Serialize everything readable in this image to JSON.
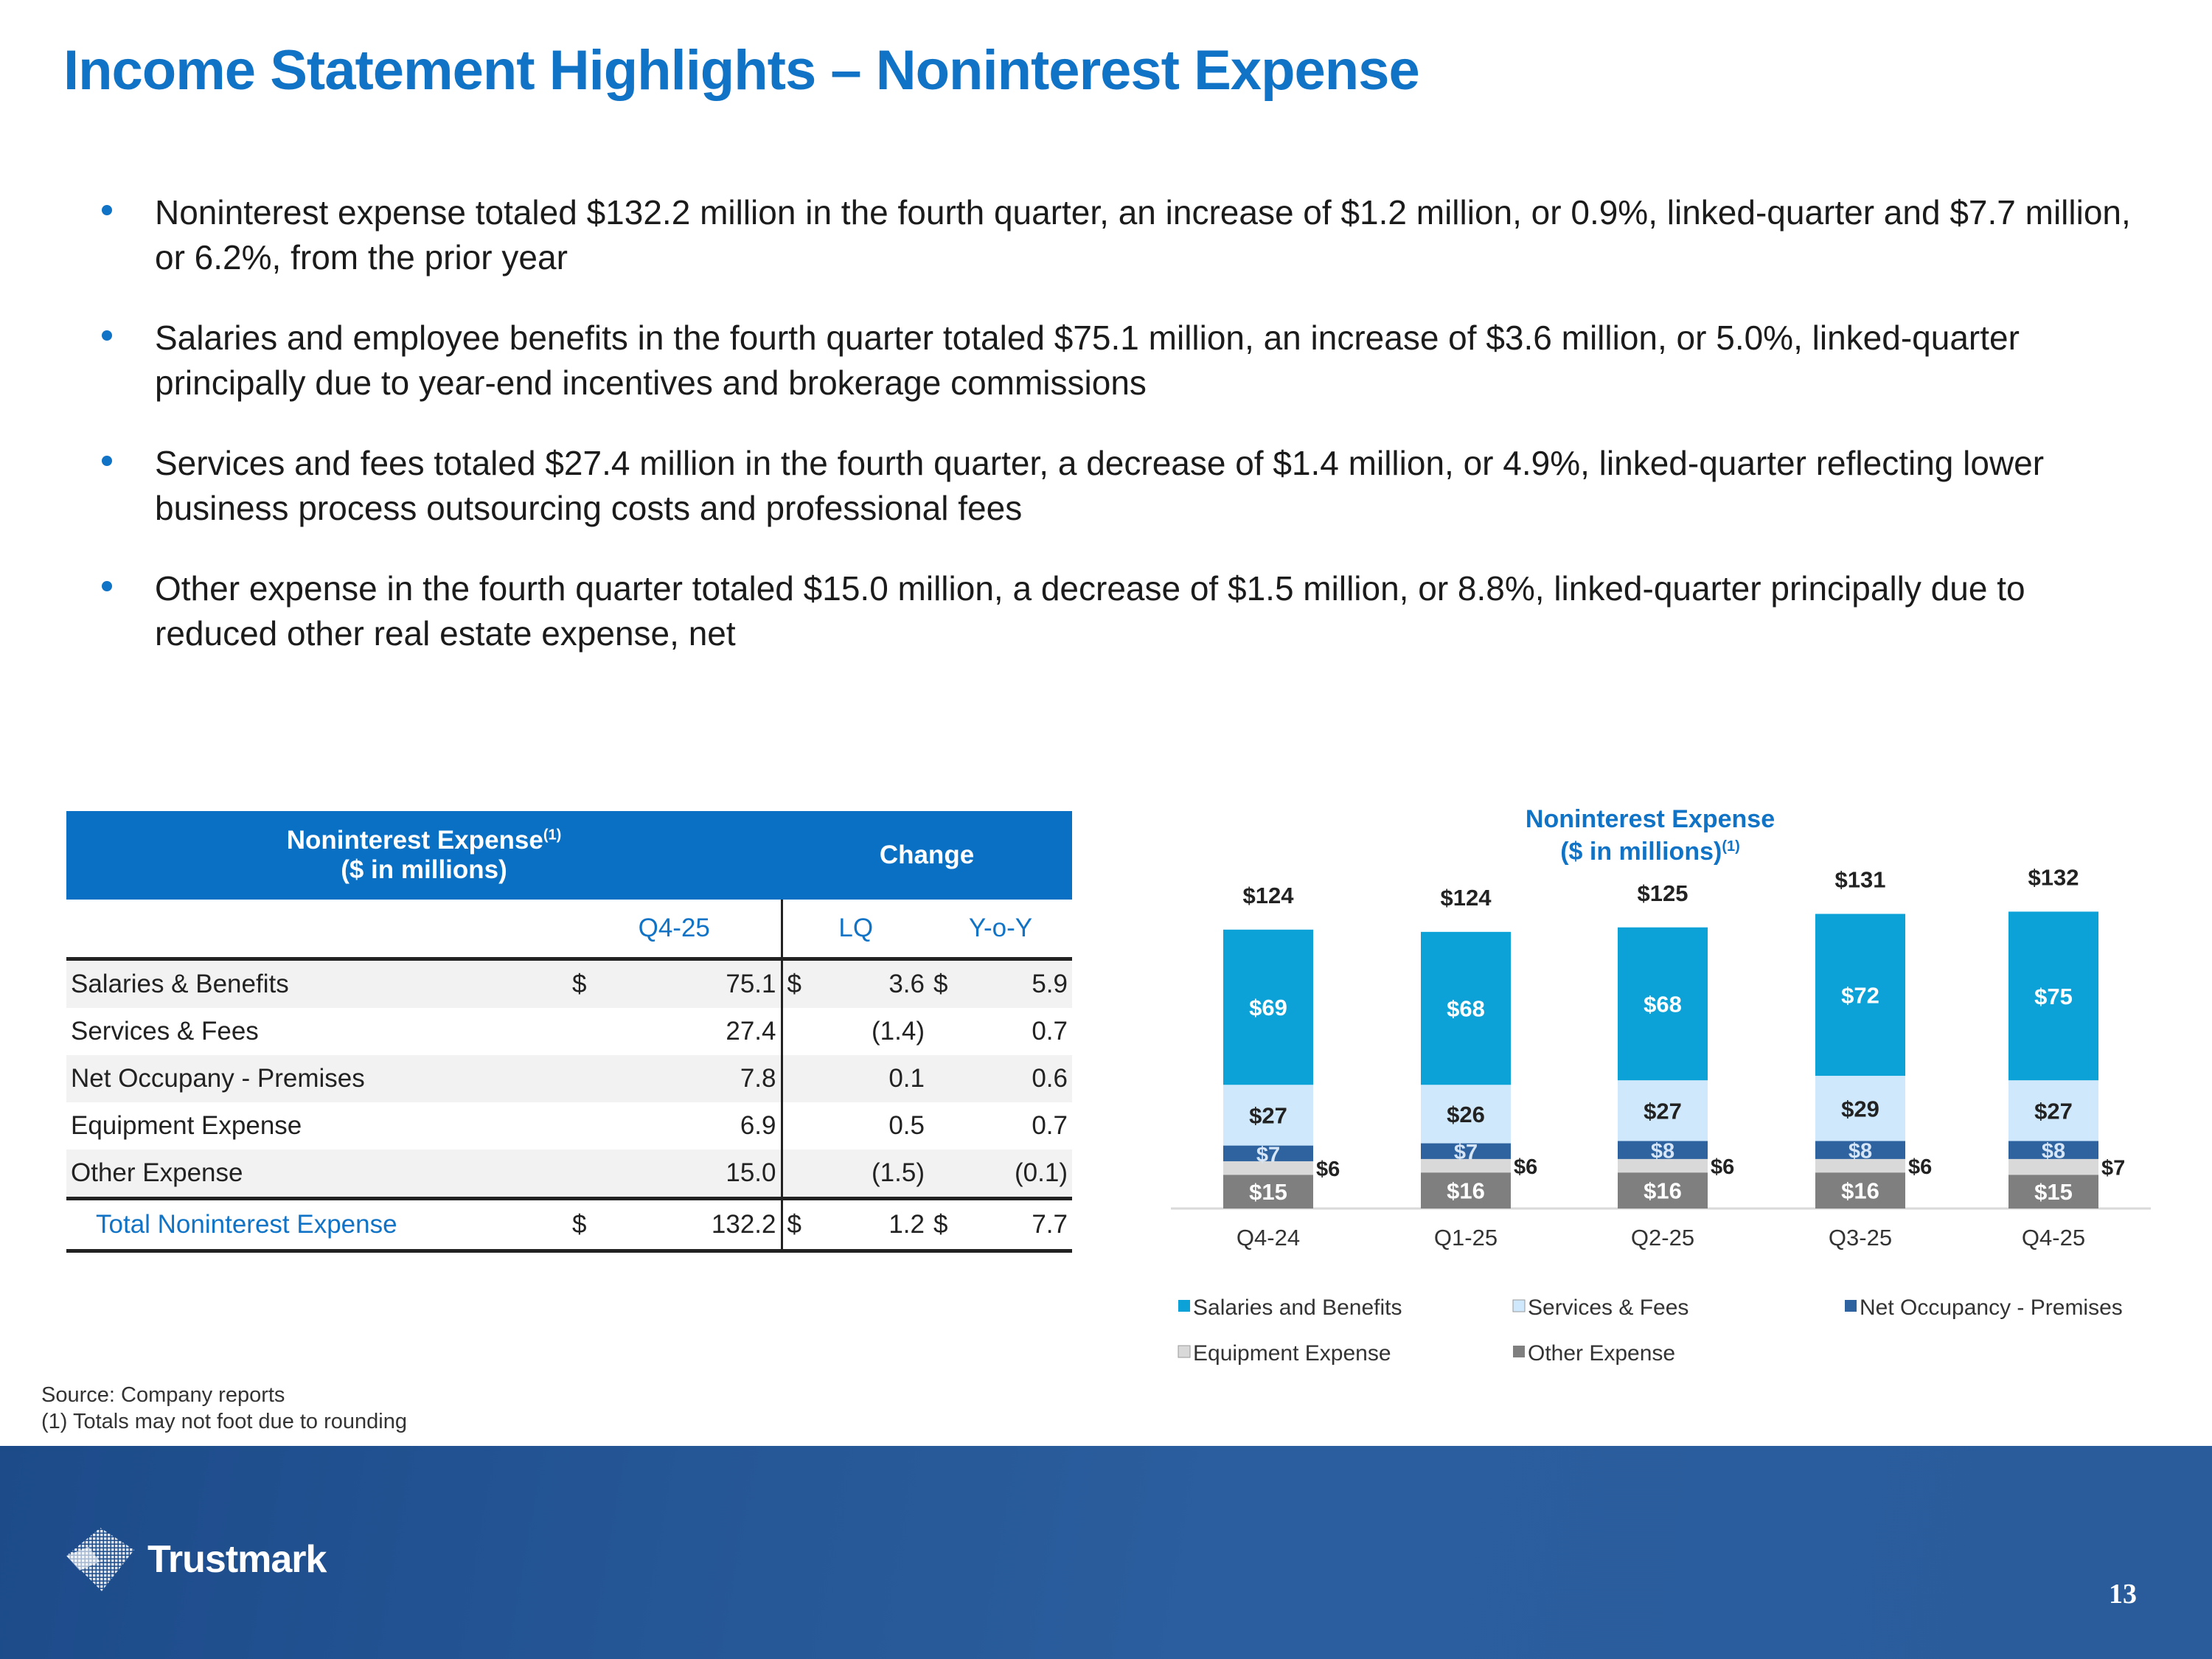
{
  "title": "Income Statement Highlights – Noninterest Expense",
  "bullets": [
    "Noninterest expense totaled $132.2 million in the fourth quarter, an increase of $1.2 million, or 0.9%, linked-quarter and $7.7 million, or 6.2%, from the prior year",
    "Salaries and employee benefits in the fourth quarter totaled $75.1 million, an increase of $3.6 million, or 5.0%, linked-quarter principally due to year-end incentives and brokerage commissions",
    "Services and fees totaled $27.4 million in the fourth quarter, a decrease of $1.4 million, or 4.9%, linked-quarter reflecting lower business process outsourcing costs and professional fees",
    "Other expense in the fourth quarter totaled $15.0 million, a decrease of $1.5 million, or 8.8%, linked-quarter principally due to reduced other real estate expense, net"
  ],
  "table": {
    "header_line1": "Noninterest Expense",
    "header_sup": "(1)",
    "header_line2": "($ in millions)",
    "change_label": "Change",
    "col_q": "Q4-25",
    "col_lq": "LQ",
    "col_yoy": "Y-o-Y",
    "rows": [
      {
        "label": "Salaries & Benefits",
        "cur1": "$",
        "q": "75.1",
        "cur2": "$",
        "lq": "3.6",
        "cur3": "$",
        "yoy": "5.9"
      },
      {
        "label": "Services & Fees",
        "cur1": "",
        "q": "27.4",
        "cur2": "",
        "lq": "(1.4)",
        "cur3": "",
        "yoy": "0.7"
      },
      {
        "label": "Net Occupany - Premises",
        "cur1": "",
        "q": "7.8",
        "cur2": "",
        "lq": "0.1",
        "cur3": "",
        "yoy": "0.6"
      },
      {
        "label": "Equipment Expense",
        "cur1": "",
        "q": "6.9",
        "cur2": "",
        "lq": "0.5",
        "cur3": "",
        "yoy": "0.7"
      },
      {
        "label": "Other Expense",
        "cur1": "",
        "q": "15.0",
        "cur2": "",
        "lq": "(1.5)",
        "cur3": "",
        "yoy": "(0.1)"
      }
    ],
    "total": {
      "label": "Total Noninterest Expense",
      "cur1": "$",
      "q": "132.2",
      "cur2": "$",
      "lq": "1.2",
      "cur3": "$",
      "yoy": "7.7"
    }
  },
  "chart_data": {
    "type": "bar",
    "stacked": true,
    "title": "Noninterest Expense",
    "subtitle": "($ in millions)",
    "subtitle_sup": "(1)",
    "categories": [
      "Q4-24",
      "Q1-25",
      "Q2-25",
      "Q3-25",
      "Q4-25"
    ],
    "series": [
      {
        "name": "Other Expense",
        "values": [
          15,
          16,
          16,
          16,
          15
        ],
        "color": "#7f7f7f",
        "label_color": "#ffffff"
      },
      {
        "name": "Equipment Expense",
        "values": [
          6,
          6,
          6,
          6,
          7
        ],
        "color": "#d9d9d9",
        "label_color": "#222222",
        "label_outside": true
      },
      {
        "name": "Net Occupancy - Premises",
        "values": [
          7,
          7,
          8,
          8,
          8
        ],
        "color": "#2e63a0",
        "label_color": "#d6e6f6"
      },
      {
        "name": "Services & Fees",
        "values": [
          27,
          26,
          27,
          29,
          27
        ],
        "color": "#cfe8fb",
        "label_color": "#222222"
      },
      {
        "name": "Salaries and Benefits",
        "values": [
          69,
          68,
          68,
          72,
          75
        ],
        "color": "#0ca2d8",
        "label_color": "#ffffff"
      }
    ],
    "totals": [
      124,
      124,
      125,
      131,
      132
    ],
    "value_prefix": "$",
    "legend_order": [
      "Salaries and Benefits",
      "Services & Fees",
      "Net Occupancy - Premises",
      "Equipment Expense",
      "Other Expense"
    ],
    "legend_position": "bottom",
    "grid": false
  },
  "footnotes": {
    "source": "Source: Company reports",
    "note1": "(1) Totals may not foot due to rounding"
  },
  "brand": {
    "logo_text": "Trustmark"
  },
  "page_number": "13"
}
